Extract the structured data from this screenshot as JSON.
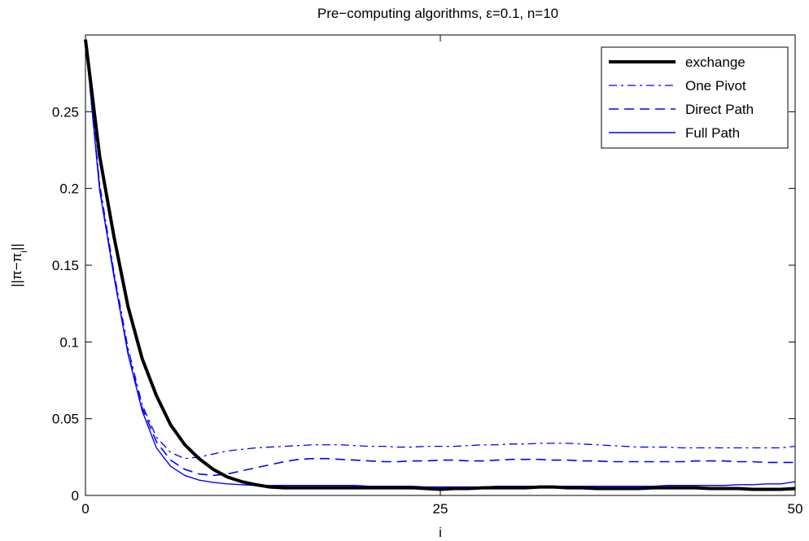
{
  "chart_data": {
    "type": "line",
    "title": "Pre−computing algorithms, ε=0.1, n=10",
    "xlabel": "i",
    "ylabel": "||π−πi||",
    "xlim": [
      0,
      50
    ],
    "ylim": [
      0,
      0.3
    ],
    "xticks": [
      0,
      25,
      50
    ],
    "xtick_labels": [
      "0",
      "25",
      "50"
    ],
    "yticks": [
      0,
      0.05,
      0.1,
      0.15,
      0.2,
      0.25
    ],
    "ytick_labels": [
      "0",
      "0.05",
      "0.1",
      "0.15",
      "0.2",
      "0.25"
    ],
    "grid": false,
    "legend_position": "top-right",
    "series": [
      {
        "name": "exchange",
        "color": "#000000",
        "style": "solid-thick",
        "x": [
          0,
          1,
          2,
          3,
          4,
          5,
          6,
          7,
          8,
          9,
          10,
          11,
          12,
          13,
          14,
          15,
          16,
          17,
          18,
          19,
          20,
          21,
          22,
          23,
          24,
          25,
          26,
          27,
          28,
          29,
          30,
          31,
          32,
          33,
          34,
          35,
          36,
          37,
          38,
          39,
          40,
          41,
          42,
          43,
          44,
          45,
          46,
          47,
          48,
          49,
          50
        ],
        "y": [
          0.297,
          0.221,
          0.169,
          0.123,
          0.089,
          0.065,
          0.046,
          0.033,
          0.024,
          0.017,
          0.012,
          0.009,
          0.007,
          0.0055,
          0.005,
          0.005,
          0.005,
          0.005,
          0.005,
          0.005,
          0.005,
          0.005,
          0.005,
          0.005,
          0.0045,
          0.004,
          0.0045,
          0.0045,
          0.005,
          0.005,
          0.005,
          0.005,
          0.0055,
          0.0055,
          0.005,
          0.005,
          0.0045,
          0.0045,
          0.0045,
          0.0045,
          0.005,
          0.005,
          0.005,
          0.005,
          0.0045,
          0.0045,
          0.0045,
          0.004,
          0.004,
          0.004,
          0.0045
        ]
      },
      {
        "name": "One Pivot",
        "color": "#0000ff",
        "style": "dash-dot",
        "x": [
          0,
          1,
          2,
          3,
          4,
          5,
          6,
          7,
          8,
          9,
          10,
          11,
          12,
          13,
          14,
          15,
          16,
          17,
          18,
          19,
          20,
          21,
          22,
          23,
          24,
          25,
          26,
          27,
          28,
          29,
          30,
          31,
          32,
          33,
          34,
          35,
          36,
          37,
          38,
          39,
          40,
          41,
          42,
          43,
          44,
          45,
          46,
          47,
          48,
          49,
          50
        ],
        "y": [
          0.297,
          0.203,
          0.146,
          0.096,
          0.059,
          0.038,
          0.028,
          0.024,
          0.025,
          0.027,
          0.029,
          0.03,
          0.031,
          0.0315,
          0.032,
          0.0325,
          0.033,
          0.033,
          0.033,
          0.0325,
          0.032,
          0.032,
          0.0315,
          0.0315,
          0.032,
          0.032,
          0.032,
          0.0325,
          0.033,
          0.033,
          0.0335,
          0.0335,
          0.034,
          0.034,
          0.034,
          0.0335,
          0.033,
          0.0325,
          0.032,
          0.0315,
          0.0315,
          0.0315,
          0.031,
          0.031,
          0.031,
          0.031,
          0.031,
          0.031,
          0.031,
          0.031,
          0.032
        ]
      },
      {
        "name": "Direct Path",
        "color": "#0000ff",
        "style": "dashed",
        "x": [
          0,
          1,
          2,
          3,
          4,
          5,
          6,
          7,
          8,
          9,
          10,
          11,
          12,
          13,
          14,
          15,
          16,
          17,
          18,
          19,
          20,
          21,
          22,
          23,
          24,
          25,
          26,
          27,
          28,
          29,
          30,
          31,
          32,
          33,
          34,
          35,
          36,
          37,
          38,
          39,
          40,
          41,
          42,
          43,
          44,
          45,
          46,
          47,
          48,
          49,
          50
        ],
        "y": [
          0.297,
          0.2,
          0.144,
          0.093,
          0.057,
          0.035,
          0.023,
          0.017,
          0.014,
          0.013,
          0.014,
          0.016,
          0.018,
          0.02,
          0.022,
          0.0235,
          0.024,
          0.024,
          0.0235,
          0.023,
          0.0225,
          0.022,
          0.022,
          0.0225,
          0.0225,
          0.023,
          0.023,
          0.0225,
          0.0225,
          0.023,
          0.0235,
          0.0235,
          0.0235,
          0.023,
          0.023,
          0.0225,
          0.0225,
          0.022,
          0.022,
          0.022,
          0.022,
          0.022,
          0.022,
          0.0225,
          0.0225,
          0.0225,
          0.022,
          0.022,
          0.0215,
          0.0215,
          0.0215
        ]
      },
      {
        "name": "Full Path",
        "color": "#0000ff",
        "style": "solid",
        "x": [
          0,
          1,
          2,
          3,
          4,
          5,
          6,
          7,
          8,
          9,
          10,
          11,
          12,
          13,
          14,
          15,
          16,
          17,
          18,
          19,
          20,
          21,
          22,
          23,
          24,
          25,
          26,
          27,
          28,
          29,
          30,
          31,
          32,
          33,
          34,
          35,
          36,
          37,
          38,
          39,
          40,
          41,
          42,
          43,
          44,
          45,
          46,
          47,
          48,
          49,
          50
        ],
        "y": [
          0.297,
          0.199,
          0.143,
          0.092,
          0.055,
          0.031,
          0.019,
          0.013,
          0.01,
          0.0085,
          0.0075,
          0.007,
          0.0065,
          0.0065,
          0.0065,
          0.0065,
          0.0065,
          0.0065,
          0.0065,
          0.0065,
          0.006,
          0.006,
          0.006,
          0.006,
          0.0055,
          0.0055,
          0.0055,
          0.0055,
          0.0055,
          0.006,
          0.006,
          0.006,
          0.006,
          0.006,
          0.006,
          0.006,
          0.006,
          0.006,
          0.006,
          0.006,
          0.006,
          0.0065,
          0.0065,
          0.0065,
          0.0065,
          0.0065,
          0.007,
          0.007,
          0.0075,
          0.0075,
          0.009
        ]
      }
    ]
  }
}
